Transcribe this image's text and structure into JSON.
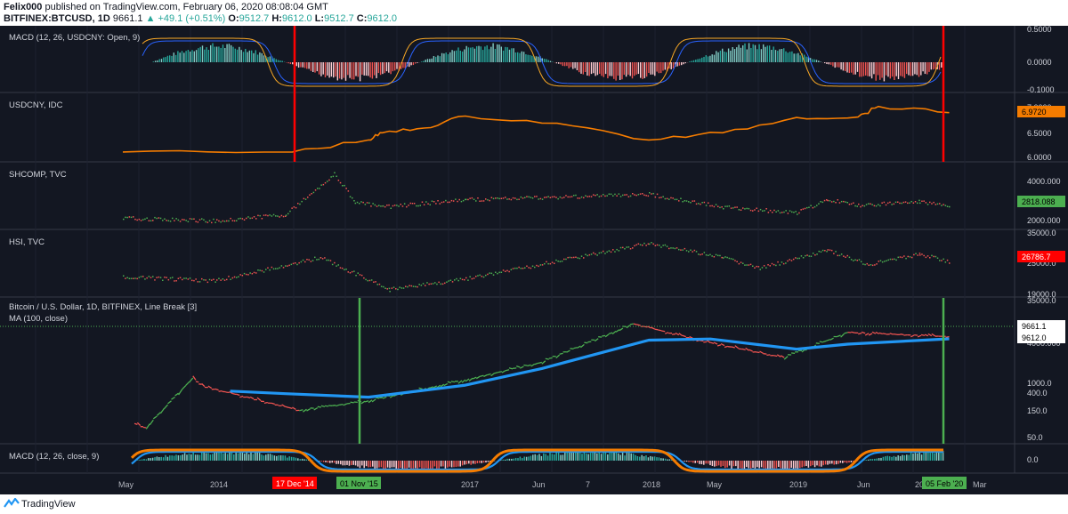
{
  "header": {
    "author": "Felix000",
    "published_text": "published on TradingView.com, February 06, 2020 08:08:04 GMT",
    "symbol": "BITFINEX:BTCUSD, 1D",
    "last": "9661.1",
    "change": "▲ +49.1 (+0.51%)",
    "o_label": "O:",
    "o": "9512.7",
    "h_label": "H:",
    "h": "9612.0",
    "l_label": "L:",
    "l": "9512.7",
    "c_label": "C:",
    "c": "9612.0"
  },
  "footer": {
    "brand": "TradingView"
  },
  "colors": {
    "background": "#131722",
    "grid": "#1e2230",
    "up": "#26a69a",
    "down": "#ef5350",
    "usdcny": "#f57c00",
    "ma": "#2196f3",
    "green_marker": "#4caf50",
    "red_marker": "#ff0000"
  },
  "chart_data": [
    {
      "type": "bar",
      "title": "MACD (12, 26, USDCNY: Open, 9)",
      "y_ticks": [
        "0.5000",
        "0.0000",
        "-0.1000"
      ],
      "ylim": [
        -0.12,
        0.52
      ]
    },
    {
      "type": "line",
      "title": "USDCNY, IDC",
      "y_ticks": [
        "7.0000",
        "6.5000",
        "6.0000"
      ],
      "last_label": "6.9720",
      "series": [
        {
          "x": [
            "May 2013",
            "Dec 2014",
            "Nov 2015",
            "Jan 2016",
            "Jul 2016",
            "Jan 2017",
            "Jul 2017",
            "Jan 2018",
            "Jul 2018",
            "Jan 2019",
            "Jul 2019",
            "Sep 2019",
            "Feb 2020"
          ],
          "values": [
            6.15,
            6.15,
            6.4,
            6.55,
            6.65,
            6.9,
            6.75,
            6.4,
            6.55,
            6.87,
            6.88,
            7.1,
            6.97
          ]
        }
      ]
    },
    {
      "type": "line",
      "title": "SHCOMP, TVC",
      "y_ticks": [
        "4000.000",
        "2000.000"
      ],
      "last_label": "2818.088",
      "series": [
        {
          "x": [
            "May 2013",
            "Jan 2014",
            "Nov 2014",
            "Jun 2015",
            "Sep 2015",
            "Jan 2016",
            "Jan 2017",
            "Jan 2018",
            "Jul 2018",
            "Jan 2019",
            "Apr 2019",
            "Jul 2019",
            "Jan 2020",
            "Feb 2020"
          ],
          "values": [
            2200,
            2050,
            2400,
            4600,
            3100,
            2800,
            3200,
            3500,
            2800,
            2500,
            3200,
            2900,
            3100,
            2818
          ]
        }
      ]
    },
    {
      "type": "line",
      "title": "HSI, TVC",
      "y_ticks": [
        "35000.0",
        "25000.0",
        "19000.0"
      ],
      "last_label": "26786.7",
      "series": [
        {
          "x": [
            "May 2013",
            "Jan 2014",
            "Apr 2015",
            "Feb 2016",
            "Jan 2017",
            "Jan 2018",
            "Jul 2018",
            "Oct 2018",
            "Apr 2019",
            "Aug 2019",
            "Jan 2020",
            "Feb 2020"
          ],
          "values": [
            22500,
            21500,
            28000,
            19000,
            22000,
            32000,
            28000,
            25000,
            30000,
            26000,
            29000,
            26786
          ]
        }
      ]
    },
    {
      "type": "line",
      "title": "Bitcoin / U.S. Dollar, 1D, BITFINEX, Line Break [3]",
      "subtitle": "MA (100, close)",
      "y_ticks": [
        "35000.0",
        "4000.000",
        "1000.0",
        "400.0",
        "150.0",
        "50.0"
      ],
      "last_labels": [
        "9661.1",
        "9612.0"
      ],
      "series": [
        {
          "x": [
            "Jun 2013",
            "Jul 2013",
            "Nov 2013",
            "Dec 2013",
            "Jan 2015",
            "Nov 2015",
            "Jan 2017",
            "Jun 2017",
            "Dec 2017",
            "Jun 2018",
            "Dec 2018",
            "Jun 2019",
            "Feb 2020"
          ],
          "values": [
            100,
            80,
            1100,
            700,
            200,
            330,
            1000,
            2500,
            19000,
            7000,
            3200,
            12000,
            9661
          ]
        },
        {
          "name": "MA (100, close)",
          "x": [
            "Mar 2014",
            "Nov 2014",
            "Nov 2015",
            "Jan 2017",
            "Jun 2017",
            "Jan 2018",
            "Jun 2018",
            "Jan 2019",
            "Jun 2019",
            "Feb 2020"
          ],
          "values": [
            550,
            480,
            400,
            750,
            1800,
            8000,
            8500,
            5000,
            6500,
            8600
          ]
        }
      ]
    },
    {
      "type": "bar",
      "title": "MACD (12, 26, close, 9)",
      "y_ticks": [
        "0.0"
      ]
    }
  ],
  "time_axis": {
    "labels": [
      "May",
      "2014",
      "2017",
      "Jun",
      "7",
      "2018",
      "May",
      "2019",
      "Jun",
      "20",
      "Mar"
    ],
    "highlights": [
      "17 Dec '14",
      "01 Nov '15",
      "05 Feb '20"
    ]
  }
}
